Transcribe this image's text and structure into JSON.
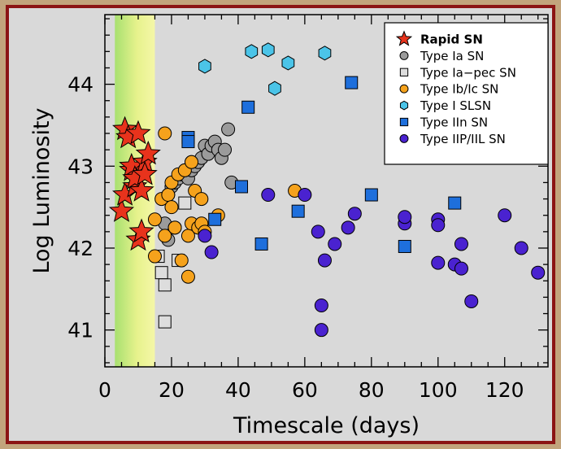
{
  "chart_data": {
    "type": "scatter",
    "xlabel": "Timescale (days)",
    "ylabel": "Log Luminosity",
    "xlim": [
      0,
      133
    ],
    "ylim": [
      40.55,
      44.85
    ],
    "x_ticks": [
      "0",
      "20",
      "40",
      "60",
      "80",
      "100",
      "120"
    ],
    "y_ticks": [
      "41",
      "42",
      "43",
      "44"
    ],
    "highlight_band": {
      "x_from": 3,
      "x_to": 15,
      "gradient": "green-yellow"
    },
    "legend_position": "top-right",
    "series": [
      {
        "name": "Rapid SN",
        "marker": "star",
        "color": "#e8331c",
        "points": [
          [
            5,
            42.45
          ],
          [
            6,
            43.45
          ],
          [
            6,
            42.65
          ],
          [
            7,
            43.35
          ],
          [
            8,
            42.95
          ],
          [
            8,
            43.0
          ],
          [
            9,
            42.75
          ],
          [
            9,
            42.85
          ],
          [
            10,
            43.4
          ],
          [
            10,
            42.1
          ],
          [
            11,
            42.7
          ],
          [
            11,
            42.2
          ],
          [
            12,
            43.05
          ],
          [
            12,
            42.9
          ],
          [
            13,
            43.15
          ]
        ]
      },
      {
        "name": "Type Ia SN",
        "marker": "circle",
        "color": "#9b9b9b",
        "points": [
          [
            18,
            42.3
          ],
          [
            19,
            42.1
          ],
          [
            19,
            42.65
          ],
          [
            20,
            42.75
          ],
          [
            21,
            42.8
          ],
          [
            22,
            42.85
          ],
          [
            23,
            42.9
          ],
          [
            24,
            42.95
          ],
          [
            25,
            42.85
          ],
          [
            26,
            42.95
          ],
          [
            26,
            43.05
          ],
          [
            27,
            43.0
          ],
          [
            28,
            43.05
          ],
          [
            29,
            43.1
          ],
          [
            30,
            43.25
          ],
          [
            31,
            43.15
          ],
          [
            32,
            43.25
          ],
          [
            33,
            43.3
          ],
          [
            34,
            43.2
          ],
          [
            35,
            43.1
          ],
          [
            36,
            43.2
          ],
          [
            37,
            43.45
          ],
          [
            38,
            42.8
          ]
        ]
      },
      {
        "name": "Type Ia−pec SN",
        "marker": "square",
        "color": "#dddddd",
        "points": [
          [
            16,
            41.9
          ],
          [
            17,
            41.7
          ],
          [
            18,
            41.55
          ],
          [
            18,
            41.1
          ],
          [
            22,
            41.85
          ],
          [
            24,
            42.55
          ]
        ]
      },
      {
        "name": "Type Ib/Ic SN",
        "marker": "circle",
        "color": "#f5a21c",
        "points": [
          [
            15,
            42.35
          ],
          [
            15,
            41.9
          ],
          [
            17,
            42.6
          ],
          [
            18,
            42.15
          ],
          [
            18,
            43.4
          ],
          [
            19,
            42.65
          ],
          [
            20,
            42.8
          ],
          [
            20,
            42.5
          ],
          [
            21,
            42.25
          ],
          [
            21,
            42.25
          ],
          [
            22,
            42.9
          ],
          [
            23,
            41.85
          ],
          [
            24,
            42.95
          ],
          [
            25,
            42.15
          ],
          [
            25,
            41.65
          ],
          [
            26,
            42.3
          ],
          [
            26,
            43.05
          ],
          [
            27,
            42.7
          ],
          [
            28,
            42.25
          ],
          [
            29,
            42.3
          ],
          [
            29,
            42.6
          ],
          [
            30,
            42.2
          ],
          [
            34,
            42.4
          ],
          [
            57,
            42.7
          ]
        ]
      },
      {
        "name": "Type I SLSN",
        "marker": "hexagon",
        "color": "#4bc4e8",
        "points": [
          [
            30,
            44.22
          ],
          [
            44,
            44.4
          ],
          [
            49,
            44.42
          ],
          [
            51,
            43.95
          ],
          [
            55,
            44.26
          ],
          [
            66,
            44.38
          ]
        ]
      },
      {
        "name": "Type IIn SN",
        "marker": "square",
        "color": "#1e6fdc",
        "points": [
          [
            25,
            43.35
          ],
          [
            25,
            43.3
          ],
          [
            33,
            42.35
          ],
          [
            41,
            42.75
          ],
          [
            43,
            43.72
          ],
          [
            47,
            42.05
          ],
          [
            58,
            42.45
          ],
          [
            74,
            44.02
          ],
          [
            80,
            42.65
          ],
          [
            90,
            42.02
          ],
          [
            105,
            42.55
          ]
        ]
      },
      {
        "name": "Type IIP/IIL SN",
        "marker": "circle",
        "color": "#4a22d0",
        "points": [
          [
            30,
            42.15
          ],
          [
            32,
            41.95
          ],
          [
            49,
            42.65
          ],
          [
            60,
            42.65
          ],
          [
            64,
            42.2
          ],
          [
            65,
            41.3
          ],
          [
            65,
            41.0
          ],
          [
            66,
            41.85
          ],
          [
            69,
            42.05
          ],
          [
            73,
            42.25
          ],
          [
            75,
            42.42
          ],
          [
            90,
            42.3
          ],
          [
            90,
            42.38
          ],
          [
            100,
            42.35
          ],
          [
            100,
            42.28
          ],
          [
            100,
            41.82
          ],
          [
            105,
            41.8
          ],
          [
            107,
            41.75
          ],
          [
            107,
            42.05
          ],
          [
            110,
            41.35
          ],
          [
            120,
            42.4
          ],
          [
            125,
            42.0
          ],
          [
            130,
            41.7
          ]
        ]
      }
    ]
  }
}
